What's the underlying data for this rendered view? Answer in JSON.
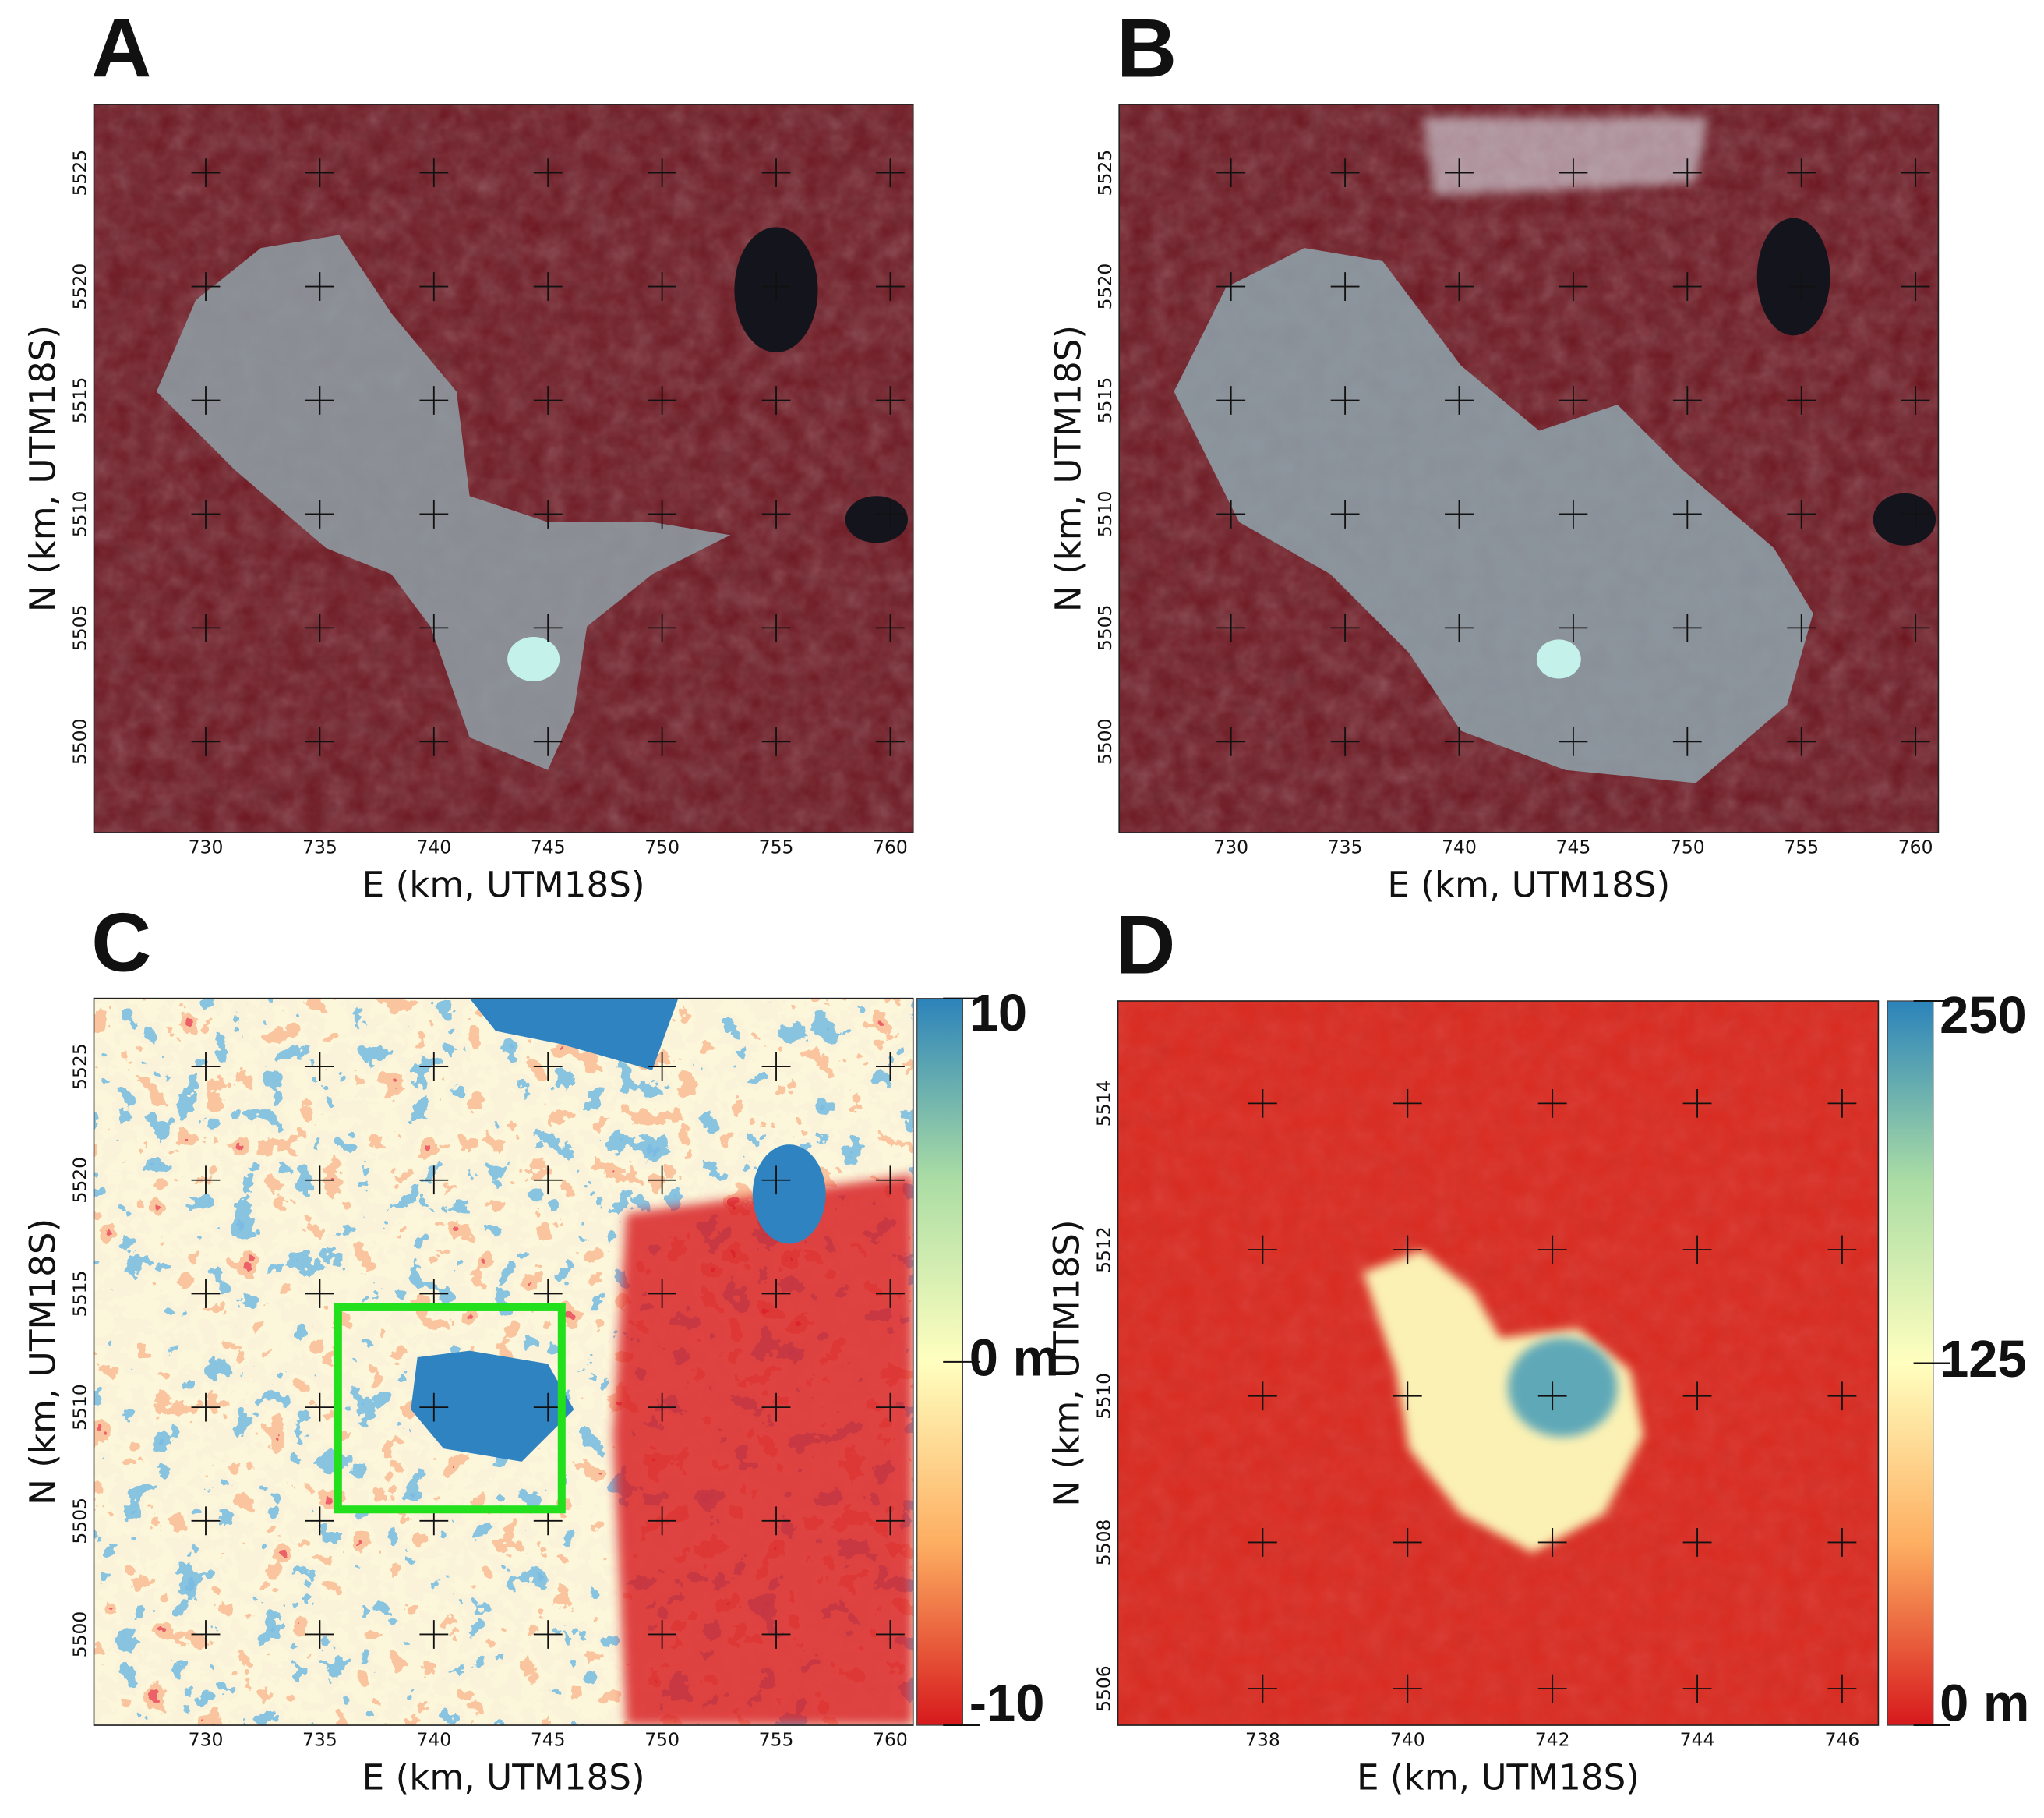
{
  "panels": [
    {
      "label": "A",
      "xlabel": "E (km, UTM18S)",
      "ylabel": "N (km, UTM18S)",
      "xlim": [
        725.1,
        761
      ],
      "ylim": [
        5496,
        5528
      ],
      "xticks": [
        730,
        735,
        740,
        745,
        750,
        755,
        760
      ],
      "yticks": [
        5500,
        5505,
        5510,
        5515,
        5520,
        5525
      ]
    },
    {
      "label": "B",
      "xlabel": "E (km, UTM18S)",
      "ylabel": "N (km, UTM18S)",
      "xlim": [
        725.1,
        761
      ],
      "ylim": [
        5496,
        5528
      ],
      "xticks": [
        730,
        735,
        740,
        745,
        750,
        755,
        760
      ],
      "yticks": [
        5500,
        5505,
        5510,
        5515,
        5520,
        5525
      ]
    },
    {
      "label": "C",
      "xlabel": "E (km, UTM18S)",
      "ylabel": "N (km, UTM18S)",
      "xlim": [
        725.1,
        761
      ],
      "ylim": [
        5496,
        5528
      ],
      "xticks": [
        730,
        735,
        740,
        745,
        750,
        755,
        760
      ],
      "yticks": [
        5500,
        5505,
        5510,
        5515,
        5520,
        5525
      ],
      "highlight_box": {
        "xlim": [
          735.8,
          745.6
        ],
        "ylim": [
          5505.5,
          5514.4
        ],
        "color": "#22e01c"
      },
      "colorbar": {
        "lim": [
          -10,
          10
        ],
        "ticks": [
          -10,
          {
            "value": 0,
            "label": "0 m"
          },
          10
        ]
      }
    },
    {
      "label": "D",
      "xlabel": "E (km, UTM18S)",
      "ylabel": "N (km, UTM18S)",
      "xlim": [
        736,
        746.5
      ],
      "ylim": [
        5505.5,
        5515.4
      ],
      "xticks": [
        738,
        740,
        742,
        744,
        746
      ],
      "yticks": [
        5506,
        5508,
        5510,
        5512,
        5514
      ],
      "colorbar": {
        "lim": [
          0,
          250
        ],
        "ticks": [
          {
            "value": 0,
            "label": "0 m"
          },
          125,
          250
        ]
      }
    }
  ]
}
